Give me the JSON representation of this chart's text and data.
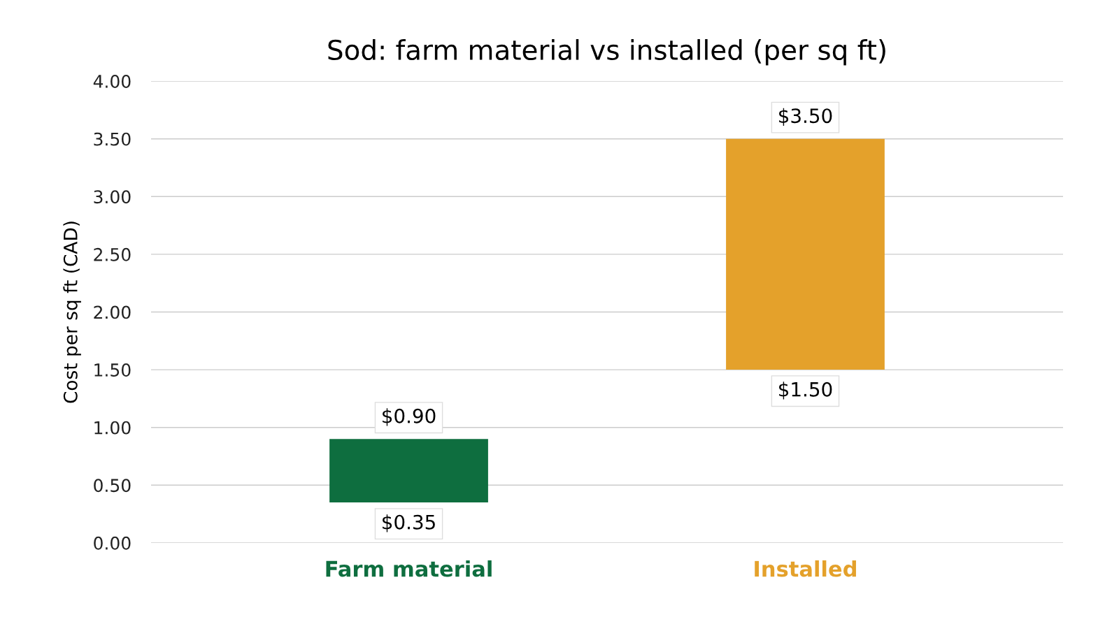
{
  "chart_data": {
    "type": "bar",
    "title": "Sod: farm material vs installed (per sq ft)",
    "ylabel": "Cost per sq ft (CAD)",
    "categories": [
      "Farm material",
      "Installed"
    ],
    "values": [
      0.55,
      2.0
    ],
    "base": [
      0.35,
      1.5
    ],
    "colors": [
      "#0e6e3f",
      "#e4a12b"
    ],
    "ylim": [
      0,
      4
    ],
    "yticks": [
      {
        "value": 0,
        "label": "0.00"
      },
      {
        "value": 0.5,
        "label": "0.50"
      },
      {
        "value": 1,
        "label": "1.00"
      },
      {
        "value": 1.5,
        "label": "1.50"
      },
      {
        "value": 2,
        "label": "2.00"
      },
      {
        "value": 2.5,
        "label": "2.50"
      },
      {
        "value": 3,
        "label": "3.00"
      },
      {
        "value": 3.5,
        "label": "3.50"
      },
      {
        "value": 4,
        "label": "4.00"
      }
    ],
    "grid": "y",
    "annotations": [
      {
        "text": "$0.90",
        "x": "Farm material",
        "y": 0.9
      },
      {
        "text": "$0.35",
        "x": "Farm material",
        "y": 0.35
      },
      {
        "text": "$3.50",
        "x": "Installed",
        "y": 3.5
      },
      {
        "text": "$1.50",
        "x": "Installed",
        "y": 1.5
      }
    ]
  }
}
